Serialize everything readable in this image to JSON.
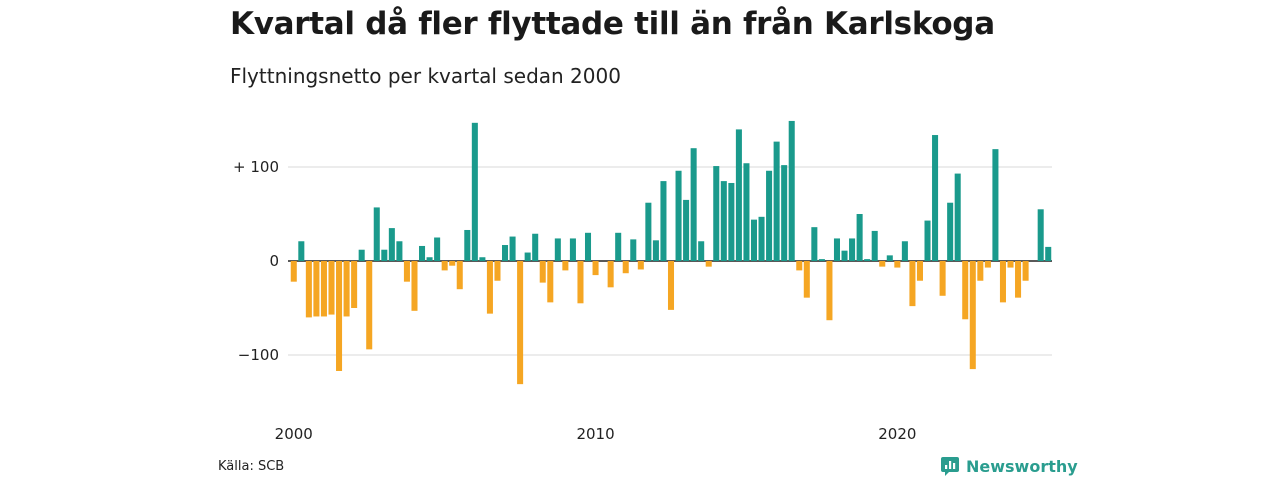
{
  "title": "Kvartal då fler flyttade till än från Karlskoga",
  "subtitle": "Flyttningsnetto per kvartal sedan 2000",
  "source": "Källa: SCB",
  "brand": "Newsworthy",
  "colors": {
    "positive": "#1a9a8c",
    "negative": "#f5a623",
    "grid": "#d9d9d9",
    "baseline": "#222222",
    "brand": "#2a9d8f"
  },
  "chart_data": {
    "type": "bar",
    "x_start": "2000 Q1",
    "x_end": "2025 Q2",
    "x_tick_labels": [
      "2000",
      "2010",
      "2020"
    ],
    "y_tick_labels": [
      "+ 100",
      "0",
      "−100"
    ],
    "y_ticks": [
      100,
      0,
      -100
    ],
    "ylim": [
      -150,
      150
    ],
    "grid": true,
    "values": [
      -22,
      21,
      -60,
      -59,
      -59,
      -57,
      -117,
      -59,
      -50,
      12,
      -94,
      57,
      12,
      35,
      21,
      -22,
      -53,
      16,
      4,
      25,
      -10,
      -5,
      -30,
      33,
      147,
      4,
      -56,
      -21,
      17,
      26,
      -131,
      9,
      29,
      -23,
      -44,
      24,
      -10,
      24,
      -45,
      30,
      -15,
      0,
      -28,
      30,
      -13,
      23,
      -9,
      62,
      22,
      85,
      -52,
      96,
      65,
      120,
      21,
      -6,
      101,
      85,
      83,
      140,
      104,
      44,
      47,
      96,
      127,
      102,
      149,
      -10,
      -39,
      36,
      2,
      -63,
      24,
      11,
      24,
      50,
      2,
      32,
      -6,
      6,
      -7,
      21,
      -48,
      -21,
      43,
      134,
      -37,
      62,
      93,
      -62,
      -115,
      -21,
      -7,
      119,
      -44,
      -7,
      -39,
      -21,
      0,
      55,
      15
    ]
  }
}
